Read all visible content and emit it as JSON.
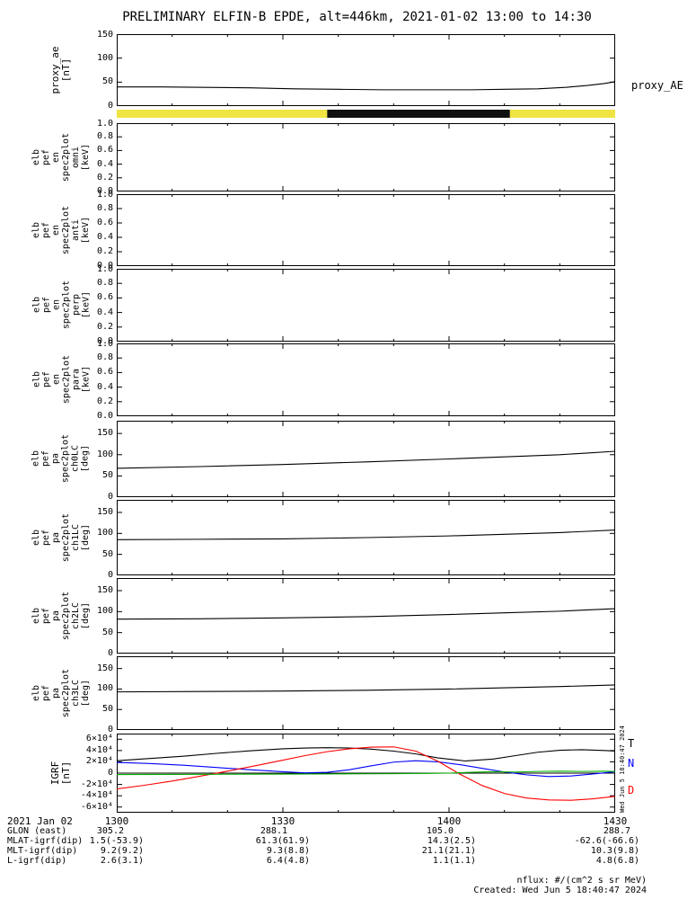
{
  "title": "PRELIMINARY ELFIN-B EPDE, alt=446km, 2021-01-02 13:00 to 14:30",
  "xaxis": {
    "date_label": "2021 Jan 02",
    "xlim": [
      0,
      90
    ],
    "minor_step": 10,
    "ticks": [
      {
        "t": 0,
        "label": "1300"
      },
      {
        "t": 30,
        "label": "1330"
      },
      {
        "t": 60,
        "label": "1400"
      },
      {
        "t": 90,
        "label": "1430"
      }
    ]
  },
  "varlabels": [
    {
      "label": "GLON (east)",
      "values": [
        "305.2",
        "288.1",
        "105.0",
        "288.7"
      ]
    },
    {
      "label": "MLAT-igrf(dip)",
      "values": [
        "1.5(-53.9)",
        "61.3(61.9)",
        "14.3(2.5)",
        "-62.6(-66.6)"
      ]
    },
    {
      "label": "MLT-igrf(dip)",
      "values": [
        "9.2(9.2)",
        "9.3(8.8)",
        "21.1(21.1)",
        "10.3(9.8)"
      ]
    },
    {
      "label": "L-igrf(dip)",
      "values": [
        "2.6(3.1)",
        "6.4(4.8)",
        "1.1(1.1)",
        "4.8(6.8)"
      ]
    }
  ],
  "right_labels": {
    "proxy": "proxy_AE",
    "T": "T",
    "N": "N",
    "D": "D"
  },
  "side_stamp": "Wed Jun  5 18:40:47 2024",
  "footer": {
    "units": "nflux: #/(cm^2 s sr MeV)",
    "created": "Created: Wed Jun  5 18:40:47 2024"
  },
  "chart_data": [
    {
      "id": "proxy_ae",
      "type": "line",
      "ylabel": "proxy_ae\n[nT]",
      "ylim": [
        0,
        150
      ],
      "yticks": [
        {
          "v": 150,
          "label": "150"
        },
        {
          "v": 100,
          "label": "100"
        },
        {
          "v": 50,
          "label": "50"
        },
        {
          "v": 0,
          "label": "0"
        }
      ],
      "series": [
        {
          "name": "proxy_AE",
          "color": "#000000",
          "x": [
            0,
            8,
            16,
            24,
            32,
            40,
            48,
            56,
            64,
            70,
            76,
            81,
            85,
            88,
            90
          ],
          "y": [
            40,
            40,
            39,
            38,
            36,
            35,
            34,
            34,
            34,
            35,
            36,
            39,
            43,
            47,
            51
          ]
        }
      ]
    },
    {
      "id": "fast_survey_availability_bar",
      "type": "band",
      "segments": [
        {
          "t0": 0,
          "t1": 38,
          "color": "#f0e442"
        },
        {
          "t0": 38,
          "t1": 71,
          "color": "#111111"
        },
        {
          "t0": 71,
          "t1": 90,
          "color": "#f0e442"
        }
      ]
    },
    {
      "id": "elb_pef_en_spec2plot_omni",
      "type": "line",
      "ylabel": "elb\npef\nen\nspec2plot\nomni\n[keV]",
      "ylim": [
        0,
        1
      ],
      "yticks": [
        {
          "v": 1,
          "label": "1.0"
        },
        {
          "v": 0.8,
          "label": "0.8"
        },
        {
          "v": 0.6,
          "label": "0.6"
        },
        {
          "v": 0.4,
          "label": "0.4"
        },
        {
          "v": 0.2,
          "label": "0.2"
        },
        {
          "v": 0,
          "label": "0.0"
        }
      ],
      "series": []
    },
    {
      "id": "elb_pef_en_spec2plot_anti",
      "type": "line",
      "ylabel": "elb\npef\nen\nspec2plot\nanti\n[keV]",
      "ylim": [
        0,
        1
      ],
      "yticks": [
        {
          "v": 1,
          "label": "1.0"
        },
        {
          "v": 0.8,
          "label": "0.8"
        },
        {
          "v": 0.6,
          "label": "0.6"
        },
        {
          "v": 0.4,
          "label": "0.4"
        },
        {
          "v": 0.2,
          "label": "0.2"
        },
        {
          "v": 0,
          "label": "0.0"
        }
      ],
      "series": []
    },
    {
      "id": "elb_pef_en_spec2plot_perp",
      "type": "line",
      "ylabel": "elb\npef\nen\nspec2plot\nperp\n[keV]",
      "ylim": [
        0,
        1
      ],
      "yticks": [
        {
          "v": 1,
          "label": "1.0"
        },
        {
          "v": 0.8,
          "label": "0.8"
        },
        {
          "v": 0.6,
          "label": "0.6"
        },
        {
          "v": 0.4,
          "label": "0.4"
        },
        {
          "v": 0.2,
          "label": "0.2"
        },
        {
          "v": 0,
          "label": "0.0"
        }
      ],
      "series": []
    },
    {
      "id": "elb_pef_en_spec2plot_para",
      "type": "line",
      "ylabel": "elb\npef\nen\nspec2plot\npara\n[keV]",
      "ylim": [
        0,
        1
      ],
      "yticks": [
        {
          "v": 1,
          "label": "1.0"
        },
        {
          "v": 0.8,
          "label": "0.8"
        },
        {
          "v": 0.6,
          "label": "0.6"
        },
        {
          "v": 0.4,
          "label": "0.4"
        },
        {
          "v": 0.2,
          "label": "0.2"
        },
        {
          "v": 0,
          "label": "0.0"
        }
      ],
      "series": []
    },
    {
      "id": "elb_pef_pa_spec2plot_ch0LC",
      "type": "line",
      "ylabel": "elb\npef\npa\nspec2plot\nch0LC\n[deg]",
      "ylim": [
        0,
        180
      ],
      "yticks": [
        {
          "v": 150,
          "label": "150"
        },
        {
          "v": 100,
          "label": "100"
        },
        {
          "v": 50,
          "label": "50"
        },
        {
          "v": 0,
          "label": "0"
        }
      ],
      "series": [
        {
          "name": "loss_cone",
          "color": "#000000",
          "x": [
            0,
            15,
            30,
            45,
            60,
            70,
            80,
            85,
            90
          ],
          "y": [
            68,
            72,
            77,
            83,
            90,
            95,
            100,
            104,
            108
          ]
        }
      ]
    },
    {
      "id": "elb_pef_pa_spec2plot_ch1LC",
      "type": "line",
      "ylabel": "elb\npef\npa\nspec2plot\nch1LC\n[deg]",
      "ylim": [
        0,
        180
      ],
      "yticks": [
        {
          "v": 150,
          "label": "150"
        },
        {
          "v": 100,
          "label": "100"
        },
        {
          "v": 50,
          "label": "50"
        },
        {
          "v": 0,
          "label": "0"
        }
      ],
      "series": [
        {
          "name": "loss_cone",
          "color": "#000000",
          "x": [
            0,
            15,
            30,
            45,
            60,
            70,
            80,
            85,
            90
          ],
          "y": [
            85,
            86,
            87,
            90,
            94,
            98,
            102,
            105,
            108
          ]
        }
      ]
    },
    {
      "id": "elb_pef_pa_spec2plot_ch2LC",
      "type": "line",
      "ylabel": "elb\npef\npa\nspec2plot\nch2LC\n[deg]",
      "ylim": [
        0,
        180
      ],
      "yticks": [
        {
          "v": 150,
          "label": "150"
        },
        {
          "v": 100,
          "label": "100"
        },
        {
          "v": 50,
          "label": "50"
        },
        {
          "v": 0,
          "label": "0"
        }
      ],
      "series": [
        {
          "name": "loss_cone",
          "color": "#000000",
          "x": [
            0,
            15,
            30,
            45,
            60,
            70,
            80,
            85,
            90
          ],
          "y": [
            82,
            83,
            85,
            88,
            93,
            97,
            101,
            104,
            107
          ]
        }
      ]
    },
    {
      "id": "elb_pef_pa_spec2plot_ch3LC",
      "type": "line",
      "ylabel": "elb\npef\npa\nspec2plot\nch3LC\n[deg]",
      "ylim": [
        0,
        180
      ],
      "yticks": [
        {
          "v": 150,
          "label": "150"
        },
        {
          "v": 100,
          "label": "100"
        },
        {
          "v": 50,
          "label": "50"
        },
        {
          "v": 0,
          "label": "0"
        }
      ],
      "series": [
        {
          "name": "loss_cone",
          "color": "#000000",
          "x": [
            0,
            15,
            30,
            45,
            60,
            70,
            80,
            85,
            90
          ],
          "y": [
            93,
            94,
            95,
            97,
            100,
            103,
            106,
            108,
            110
          ]
        }
      ]
    },
    {
      "id": "igrf",
      "type": "line",
      "ylabel": "IGRF\n[nT]",
      "ylim": [
        -70000,
        70000
      ],
      "zeroline": true,
      "yticks": [
        {
          "v": 60000,
          "label": "6×10⁴"
        },
        {
          "v": 40000,
          "label": "4×10⁴"
        },
        {
          "v": 20000,
          "label": "2×10⁴"
        },
        {
          "v": 0,
          "label": "0"
        },
        {
          "v": -20000,
          "label": "-2×10⁴"
        },
        {
          "v": -40000,
          "label": "-4×10⁴"
        },
        {
          "v": -60000,
          "label": "-6×10⁴"
        }
      ],
      "series": [
        {
          "name": "T",
          "color": "#000000",
          "x": [
            0,
            6,
            12,
            18,
            24,
            30,
            34,
            38,
            42,
            46,
            50,
            54,
            58,
            63,
            68,
            72,
            76,
            80,
            84,
            88,
            90
          ],
          "y": [
            22000,
            26000,
            30000,
            35000,
            39500,
            43000,
            44500,
            45000,
            44500,
            42500,
            39000,
            34000,
            27000,
            21500,
            25000,
            31000,
            37000,
            40500,
            41500,
            40000,
            39000
          ]
        },
        {
          "name": "N",
          "color": "#0000ff",
          "x": [
            0,
            6,
            12,
            18,
            24,
            30,
            34,
            38,
            42,
            46,
            50,
            54,
            58,
            62,
            66,
            70,
            74,
            78,
            82,
            86,
            90
          ],
          "y": [
            19000,
            17000,
            14000,
            10000,
            6000,
            2500,
            500,
            1500,
            6000,
            13000,
            19500,
            22000,
            20000,
            15000,
            8500,
            2000,
            -3000,
            -6000,
            -5000,
            -1500,
            2500
          ]
        },
        {
          "name": "D",
          "color": "#ff0000",
          "x": [
            0,
            5,
            10,
            15,
            20,
            25,
            30,
            34,
            38,
            42,
            46,
            50,
            54,
            58,
            62,
            66,
            70,
            74,
            78,
            82,
            86,
            90
          ],
          "y": [
            -28000,
            -21500,
            -14000,
            -5500,
            3500,
            13000,
            23000,
            31000,
            38000,
            43000,
            46000,
            46500,
            39000,
            21000,
            -2000,
            -22000,
            -36000,
            -44000,
            -47500,
            -48000,
            -45500,
            -41000
          ]
        },
        {
          "name": "green",
          "color": "#00b000",
          "x": [
            0,
            10,
            20,
            30,
            40,
            50,
            56,
            60,
            64,
            68,
            72,
            76,
            80,
            84,
            88,
            90
          ],
          "y": [
            -2500,
            -2300,
            -2000,
            -1700,
            -1400,
            -1000,
            -500,
            0,
            1500,
            2500,
            2000,
            3000,
            3500,
            3000,
            3500,
            3000
          ]
        }
      ]
    }
  ]
}
